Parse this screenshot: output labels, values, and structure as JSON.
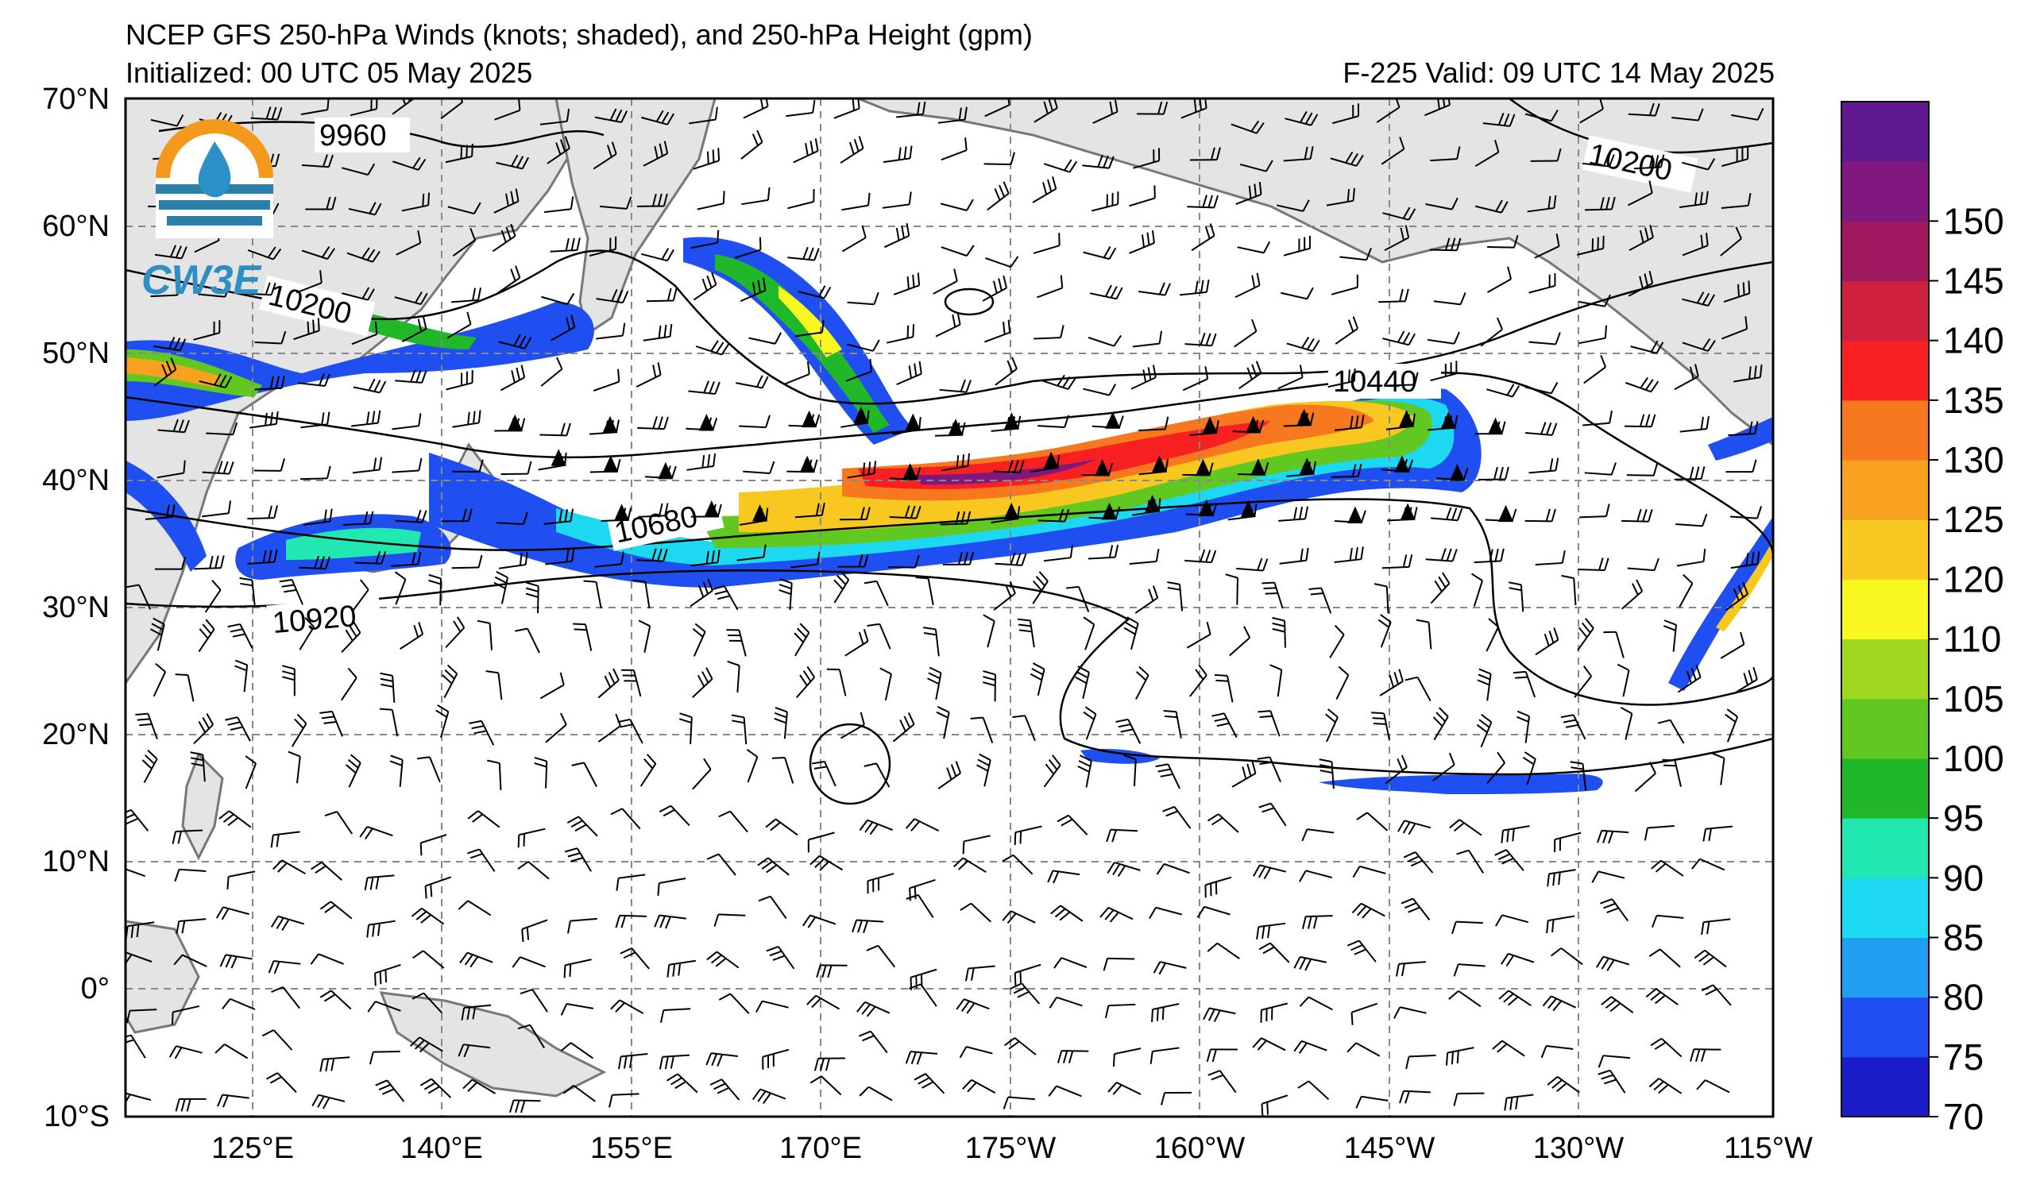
{
  "header": {
    "title": "NCEP GFS 250-hPa Winds (knots; shaded), and 250-hPa Height (gpm)",
    "init": "Initialized: 00 UTC 05 May 2025",
    "valid": "F-225  Valid: 09 UTC 14 May 2025"
  },
  "logo": {
    "text": "CW3E"
  },
  "axes": {
    "lat_labels": [
      "70°N",
      "60°N",
      "50°N",
      "40°N",
      "30°N",
      "20°N",
      "10°N",
      "0°",
      "10°S"
    ],
    "lon_labels": [
      "125°E",
      "140°E",
      "155°E",
      "170°E",
      "175°W",
      "160°W",
      "145°W",
      "130°W",
      "115°W"
    ]
  },
  "contour_labels": [
    "9960",
    "10200",
    "10200",
    "10440",
    "10680",
    "10920"
  ],
  "colorbar": {
    "tick_labels": [
      "70",
      "75",
      "80",
      "85",
      "90",
      "95",
      "100",
      "105",
      "110",
      "120",
      "125",
      "130",
      "135",
      "140",
      "145",
      "150"
    ],
    "colors": [
      "#1b1bc8",
      "#1f4ff0",
      "#1fa0f0",
      "#1cd8f0",
      "#20e8b0",
      "#20b828",
      "#60c820",
      "#a0d820",
      "#f8f820",
      "#f8c820",
      "#f8a020",
      "#f87820",
      "#f82020",
      "#d02040",
      "#a01860",
      "#801880",
      "#601890"
    ]
  },
  "map_colors": {
    "land": "#e4e4e4",
    "coast": "#777777",
    "grid": "#888888"
  }
}
